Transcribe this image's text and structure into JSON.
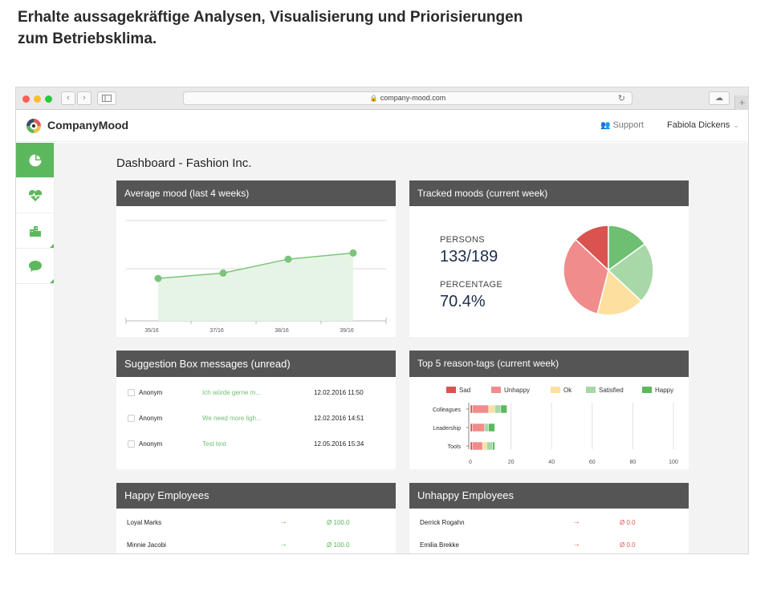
{
  "headline": {
    "line1": "Erhalte aussagekräftige Analysen, Visualisierung und Priorisierungen",
    "line2": "zum Betriebsklima."
  },
  "browser": {
    "url": "company-mood.com",
    "back_glyph": "‹",
    "forward_glyph": "›",
    "reload_glyph": "↻",
    "newtab_glyph": "+",
    "traffic_lights": [
      "#ff5f57",
      "#febc2e",
      "#28c840"
    ]
  },
  "app": {
    "brand": "CompanyMood",
    "support": "Support",
    "user": "Fabiola Dickens",
    "user_chevron": "⌄",
    "accent": "#5cb85c"
  },
  "sidebar": {
    "items": [
      {
        "name": "dashboard-pie-icon",
        "active": true
      },
      {
        "name": "heart-pulse-icon",
        "active": false
      },
      {
        "name": "buildings-icon",
        "active": false
      },
      {
        "name": "chat-bubble-icon",
        "active": false
      }
    ]
  },
  "dashboard": {
    "title": "Dashboard - Fashion Inc.",
    "avg_mood": {
      "title": "Average mood (last 4 weeks)"
    },
    "tracked": {
      "title": "Tracked moods (current week)",
      "persons_label": "PERSONS",
      "persons_value": "133/189",
      "percentage_label": "PERCENTAGE",
      "percentage_value": "70.4%"
    },
    "suggestions": {
      "title": "Suggestion Box messages (unread)",
      "rows": [
        {
          "author": "Anonym",
          "preview": "Ich würde gerne m...",
          "date": "12.02.2016 11:50"
        },
        {
          "author": "Anonym",
          "preview": "We need more ligh...",
          "date": "12.02.2016 14:51"
        },
        {
          "author": "Anonym",
          "preview": "Test text",
          "date": "12.05.2016 15:34"
        }
      ]
    },
    "reasons": {
      "title": "Top 5 reason-tags (current week)"
    },
    "happy": {
      "title": "Happy Employees",
      "rows": [
        {
          "name": "Loyal Marks",
          "arrow": "→",
          "score": "Ø 100.0"
        },
        {
          "name": "Minnie Jacobi",
          "arrow": "→",
          "score": "Ø 100.0"
        }
      ],
      "color": "#5cb85c"
    },
    "unhappy": {
      "title": "Unhappy Employees",
      "rows": [
        {
          "name": "Derrick Rogahn",
          "arrow": "→",
          "score": "Ø 0.0"
        },
        {
          "name": "Emilia Brekke",
          "arrow": "→",
          "score": "Ø 0.0"
        }
      ],
      "color": "#e05a5a"
    }
  },
  "chart_data": [
    {
      "type": "area",
      "title": "Average mood (last 4 weeks)",
      "categories": [
        "35/16",
        "37/16",
        "38/16",
        "39/16"
      ],
      "values": [
        55,
        62,
        80,
        88
      ],
      "ylim": [
        0,
        130
      ],
      "grid": true,
      "color": "#7cc47c"
    },
    {
      "type": "pie",
      "title": "Tracked moods (current week)",
      "slices": [
        {
          "value": 13,
          "color": "#d9534f"
        },
        {
          "value": 15,
          "color": "#6fbf73"
        },
        {
          "value": 22,
          "color": "#a8d8a8"
        },
        {
          "value": 17,
          "color": "#fde0a0"
        },
        {
          "value": 33,
          "color": "#f08c8c"
        }
      ]
    },
    {
      "type": "bar",
      "orientation": "horizontal-stacked",
      "title": "Top 5 reason-tags (current week)",
      "categories": [
        "Colleagues",
        "Leadership",
        "Tools"
      ],
      "legend": [
        {
          "name": "Sad",
          "color": "#d9534f"
        },
        {
          "name": "Unhappy",
          "color": "#f08c8c"
        },
        {
          "name": "Ok",
          "color": "#fde0a0"
        },
        {
          "name": "Satisfied",
          "color": "#a8d8a8"
        },
        {
          "name": "Happy",
          "color": "#5cb85c"
        }
      ],
      "series": [
        {
          "name": "Sad",
          "values": [
            1,
            1,
            1
          ]
        },
        {
          "name": "Unhappy",
          "values": [
            8,
            6,
            5
          ]
        },
        {
          "name": "Ok",
          "values": [
            3,
            0,
            2
          ]
        },
        {
          "name": "Satisfied",
          "values": [
            3,
            2,
            3
          ]
        },
        {
          "name": "Happy",
          "values": [
            3,
            3,
            1
          ]
        }
      ],
      "xticks": [
        "0",
        "20",
        "40",
        "60",
        "80",
        "100"
      ],
      "xlim": [
        0,
        100
      ],
      "grid": true
    }
  ]
}
